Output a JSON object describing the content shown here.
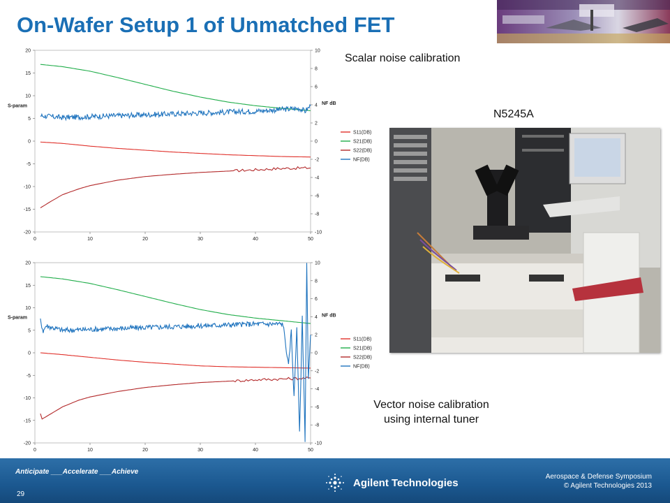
{
  "slide": {
    "title": "On-Wafer Setup 1 of Unmatched FET",
    "labels": {
      "scalar": "Scalar noise calibration",
      "instrument": "N5245A",
      "vector_line1": "Vector noise calibration",
      "vector_line2": "using internal tuner"
    },
    "photo_icon": "probe-station-photo"
  },
  "footer": {
    "tagline": "Anticipate ___Accelerate ___Achieve",
    "page_number": "29",
    "logo_text": "Agilent Technologies",
    "event_line1": "Aerospace & Defense Symposium",
    "event_line2": "© Agilent Technologies 2013"
  },
  "chart_data": [
    {
      "type": "line",
      "ylabel": "S-param",
      "y2label": "NF dB",
      "xlim": [
        0,
        50
      ],
      "ylim": [
        -20,
        20
      ],
      "y2lim": [
        -10,
        10
      ],
      "x_ticks": [
        0,
        10,
        20,
        30,
        40,
        50
      ],
      "y_ticks": [
        20,
        15,
        10,
        5,
        0,
        -5,
        -10,
        -15,
        -20
      ],
      "y2_ticks": [
        10,
        8,
        6,
        4,
        2,
        0,
        -2,
        -4,
        -6,
        -8,
        -10
      ],
      "legend_position": "right",
      "series": [
        {
          "name": "S11(DB)",
          "color": "#e0312b",
          "axis": "left",
          "x": [
            1,
            5,
            10,
            15,
            20,
            25,
            30,
            35,
            40,
            45,
            50
          ],
          "values": [
            -0.2,
            -0.5,
            -1.1,
            -1.6,
            -2.0,
            -2.4,
            -2.7,
            -3.0,
            -3.2,
            -3.4,
            -3.5
          ]
        },
        {
          "name": "S21(DB)",
          "color": "#20ad4a",
          "axis": "left",
          "x": [
            1,
            5,
            10,
            15,
            20,
            25,
            30,
            35,
            40,
            45,
            50
          ],
          "values": [
            16.9,
            16.4,
            15.4,
            14.0,
            12.5,
            11.0,
            9.7,
            8.6,
            7.8,
            7.2,
            6.7
          ]
        },
        {
          "name": "S22(DB)",
          "color": "#b3292a",
          "axis": "left",
          "x": [
            1,
            3,
            5,
            8,
            10,
            15,
            20,
            25,
            30,
            35,
            40,
            45,
            50
          ],
          "values": [
            -14.7,
            -13.2,
            -11.8,
            -10.5,
            -9.8,
            -8.6,
            -7.8,
            -7.3,
            -6.9,
            -6.6,
            -6.3,
            -6.0,
            -5.9
          ]
        },
        {
          "name": "NF(DB)",
          "color": "#1e73be",
          "axis": "right",
          "x": [
            1,
            5,
            10,
            15,
            20,
            25,
            30,
            35,
            40,
            45,
            48,
            49,
            50
          ],
          "values": [
            2.8,
            2.6,
            2.7,
            2.8,
            2.9,
            3.0,
            3.1,
            3.2,
            3.3,
            3.5,
            3.6,
            3.3,
            3.9
          ]
        }
      ]
    },
    {
      "type": "line",
      "ylabel": "S-param",
      "y2label": "NF dB",
      "xlim": [
        0,
        50
      ],
      "ylim": [
        -20,
        20
      ],
      "y2lim": [
        -10,
        10
      ],
      "x_ticks": [
        0,
        10,
        20,
        30,
        40,
        50
      ],
      "y_ticks": [
        20,
        15,
        10,
        5,
        0,
        -5,
        -10,
        -15,
        -20
      ],
      "y2_ticks": [
        10,
        8,
        6,
        4,
        2,
        0,
        -2,
        -4,
        -6,
        -8,
        -10
      ],
      "legend_position": "right",
      "series": [
        {
          "name": "S11(DB)",
          "color": "#e0312b",
          "axis": "left",
          "x": [
            1,
            5,
            10,
            15,
            20,
            25,
            30,
            35,
            40,
            45,
            50
          ],
          "values": [
            0,
            -0.4,
            -1.0,
            -1.6,
            -2.1,
            -2.5,
            -2.9,
            -3.1,
            -3.2,
            -3.3,
            -3.4
          ]
        },
        {
          "name": "S21(DB)",
          "color": "#20ad4a",
          "axis": "left",
          "x": [
            1,
            5,
            10,
            15,
            20,
            25,
            30,
            35,
            40,
            45,
            50
          ],
          "values": [
            16.9,
            16.4,
            15.4,
            14.0,
            12.5,
            11.0,
            9.6,
            8.5,
            7.7,
            7.1,
            6.5
          ]
        },
        {
          "name": "S22(DB)",
          "color": "#b3292a",
          "axis": "left",
          "x": [
            1,
            1.3,
            2,
            5,
            8,
            10,
            15,
            20,
            25,
            30,
            35,
            40,
            45,
            50
          ],
          "values": [
            -13.5,
            -14.7,
            -14.2,
            -12.0,
            -10.5,
            -9.8,
            -8.6,
            -7.7,
            -7.1,
            -6.6,
            -6.3,
            -6.0,
            -5.8,
            -5.6
          ]
        },
        {
          "name": "NF(DB)",
          "color": "#1e73be",
          "axis": "right",
          "x": [
            1,
            1.5,
            2,
            5,
            10,
            15,
            20,
            25,
            30,
            35,
            40,
            45,
            46,
            46.5,
            47,
            47.5,
            48,
            48.5,
            49,
            49.3,
            49.6,
            50
          ],
          "values": [
            3.6,
            2.4,
            3.0,
            2.5,
            2.6,
            2.7,
            2.8,
            2.9,
            3.0,
            3.1,
            3.2,
            3.2,
            -1.5,
            2.5,
            -5,
            3,
            -9,
            4,
            -9.6,
            10,
            -3,
            2
          ]
        }
      ]
    }
  ]
}
